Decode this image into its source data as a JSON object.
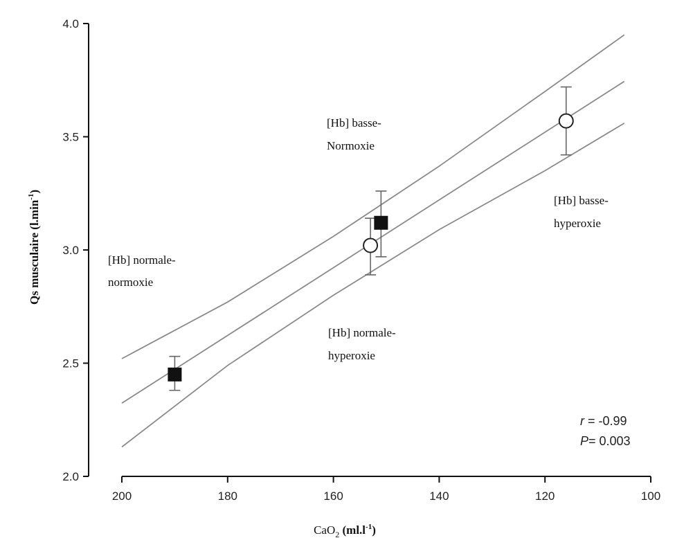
{
  "chart_data": {
    "type": "scatter",
    "xlabel": {
      "main": "CaO",
      "sub": "2",
      "units": " (ml.l",
      "sup": "-1",
      "close": ")"
    },
    "ylabel": {
      "main": "Qs musculaire (l.min",
      "sup": "-1",
      "close": ")"
    },
    "xlim": [
      200,
      100
    ],
    "ylim": [
      2.0,
      4.0
    ],
    "x_ticks": [
      "200",
      "180",
      "160",
      "140",
      "120",
      "100"
    ],
    "y_ticks": [
      "2.0",
      "2.5",
      "3.0",
      "3.5",
      "4.0"
    ],
    "grid": false,
    "series": [
      {
        "marker": "filled-square",
        "points": [
          {
            "x": 190,
            "y": 2.45,
            "err_low": 2.38,
            "err_high": 2.53
          },
          {
            "x": 151,
            "y": 3.12,
            "err_low": 2.97,
            "err_high": 3.26
          }
        ]
      },
      {
        "marker": "open-circle",
        "points": [
          {
            "x": 153,
            "y": 3.02,
            "err_low": 2.89,
            "err_high": 3.14
          },
          {
            "x": 116,
            "y": 3.57,
            "err_low": 3.42,
            "err_high": 3.72
          }
        ]
      }
    ],
    "regression": {
      "slope": -0.01496,
      "intercept": 5.3153,
      "x_range": [
        200,
        105
      ]
    },
    "confidence_band": {
      "upper": [
        [
          200,
          2.52
        ],
        [
          180,
          2.77
        ],
        [
          160,
          3.06
        ],
        [
          140,
          3.37
        ],
        [
          120,
          3.7
        ],
        [
          105,
          3.95
        ]
      ],
      "lower": [
        [
          200,
          2.13
        ],
        [
          180,
          2.49
        ],
        [
          160,
          2.8
        ],
        [
          140,
          3.09
        ],
        [
          120,
          3.35
        ],
        [
          105,
          3.56
        ]
      ]
    },
    "annotations": [
      {
        "line1": "[Hb] basse-",
        "line2": "Normoxie"
      },
      {
        "line1": "[Hb] basse-",
        "line2": "hyperoxie"
      },
      {
        "line1": "[Hb] normale-",
        "line2": "normoxie"
      },
      {
        "line1": "[Hb] normale-",
        "line2": "hyperoxie"
      }
    ],
    "stats": {
      "r_label": "r",
      "r_value": " = -0.99",
      "p_label": "P",
      "p_value": "= 0.003"
    }
  }
}
